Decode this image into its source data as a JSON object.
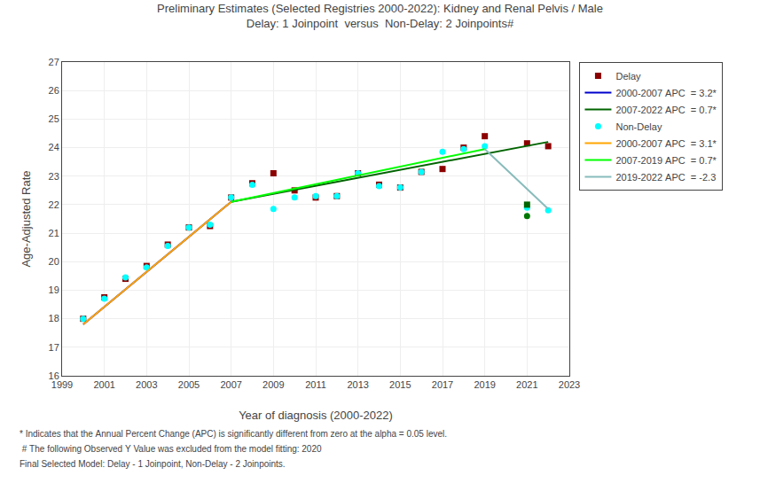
{
  "chart_data": {
    "type": "scatter",
    "title": "Preliminary Estimates (Selected Registries 2000-2022): Kidney and Renal Pelvis / Male",
    "subtitle": "Delay: 1 Joinpoint  versus  Non-Delay: 2 Joinpoints#",
    "xlabel": "Year of diagnosis (2000-2022)",
    "ylabel": "Age-Adjusted Rate",
    "xlim": [
      1999,
      2023
    ],
    "ylim": [
      16,
      27
    ],
    "xticks": [
      1999,
      2001,
      2003,
      2005,
      2007,
      2009,
      2011,
      2013,
      2015,
      2017,
      2019,
      2021,
      2023
    ],
    "yticks": [
      16,
      17,
      18,
      19,
      20,
      21,
      22,
      23,
      24,
      25,
      26,
      27
    ],
    "grid": true,
    "legend": "right",
    "annotations": [
      "* Indicates that the Annual Percent Change (APC) is significantly different from zero at the alpha = 0.05 level.",
      " # The following Observed Y Value was excluded from the model fitting: 2020",
      "Final Selected Model: Delay - 1 Joinpoint, Non-Delay - 2 Joinpoints."
    ],
    "series": [
      {
        "name": "Delay",
        "type": "scatter",
        "marker": "square",
        "color": "#8B0000",
        "x": [
          2000,
          2001,
          2002,
          2003,
          2004,
          2005,
          2006,
          2007,
          2008,
          2009,
          2010,
          2011,
          2012,
          2013,
          2014,
          2015,
          2016,
          2017,
          2018,
          2019,
          2021,
          2022
        ],
        "values": [
          18.0,
          18.75,
          19.4,
          19.85,
          20.6,
          21.2,
          21.25,
          22.25,
          22.75,
          23.1,
          22.5,
          22.25,
          22.3,
          23.1,
          22.7,
          22.6,
          23.15,
          23.25,
          24.0,
          24.4,
          24.15,
          24.05
        ]
      },
      {
        "name": "2000-2007 APC  = 3.2*",
        "type": "line",
        "line_style": "solid",
        "color": "#0000CD",
        "x": [
          2000,
          2007
        ],
        "values": [
          17.8,
          22.1
        ]
      },
      {
        "name": "2007-2022 APC  = 0.7*",
        "type": "line",
        "line_style": "solid",
        "color": "#006400",
        "x": [
          2007,
          2022
        ],
        "values": [
          22.1,
          24.2
        ]
      },
      {
        "name": "Non-Delay",
        "type": "scatter",
        "marker": "circle",
        "color": "#00FFFF",
        "x": [
          2000,
          2001,
          2002,
          2003,
          2004,
          2005,
          2006,
          2007,
          2008,
          2009,
          2010,
          2011,
          2012,
          2013,
          2014,
          2015,
          2016,
          2017,
          2018,
          2019,
          2021,
          2022
        ],
        "values": [
          18.0,
          18.7,
          19.45,
          19.8,
          20.55,
          21.2,
          21.3,
          22.25,
          22.7,
          21.85,
          22.25,
          22.3,
          22.3,
          23.1,
          22.65,
          22.6,
          23.15,
          23.85,
          23.95,
          24.05,
          21.9,
          21.8
        ]
      },
      {
        "name": "2000-2007 APC  = 3.1*",
        "type": "line",
        "line_style": "solid",
        "color": "#FFA500",
        "x": [
          2000,
          2007
        ],
        "values": [
          17.8,
          22.1
        ]
      },
      {
        "name": "2007-2019 APC  = 0.7*",
        "type": "line",
        "line_style": "solid",
        "color": "#00FF00",
        "x": [
          2007,
          2019
        ],
        "values": [
          22.1,
          23.95
        ]
      },
      {
        "name": "2019-2022 APC  = -2.3",
        "type": "line",
        "line_style": "solid",
        "color": "#88BBBB",
        "x": [
          2019,
          2022
        ],
        "values": [
          23.95,
          21.85
        ]
      },
      {
        "type": "scatter",
        "marker": "square",
        "color": "#006400",
        "x": [
          2021
        ],
        "values": [
          22.0
        ]
      },
      {
        "type": "scatter",
        "marker": "circle",
        "color": "#007700",
        "x": [
          2021
        ],
        "values": [
          21.6
        ]
      }
    ]
  }
}
